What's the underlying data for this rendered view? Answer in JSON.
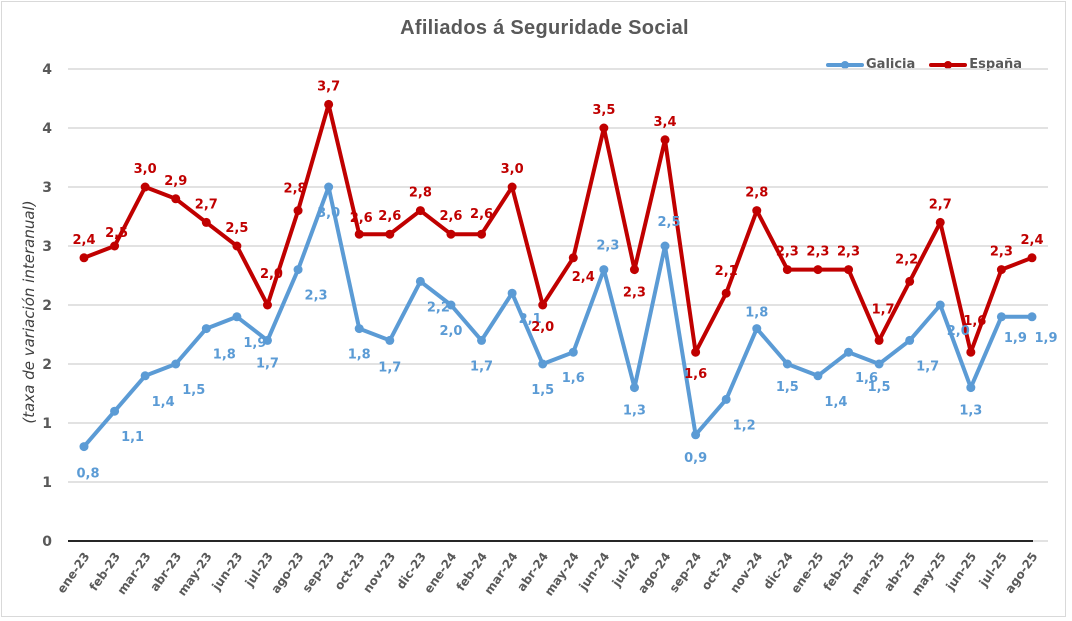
{
  "chart_data": {
    "type": "line",
    "title": "Afiliados  á Seguridade Social",
    "xlabel": "",
    "ylabel": "(taxa de variación interanual)",
    "ylim": [
      0,
      4
    ],
    "yticks": [
      0,
      0.5,
      1,
      1.5,
      2,
      2.5,
      3,
      3.5,
      4
    ],
    "ytick_labels": [
      "0",
      "1",
      "1",
      "2",
      "2",
      "3",
      "3",
      "4",
      "4"
    ],
    "grid": true,
    "legend_position": "top-right",
    "categories": [
      "ene-23",
      "feb-23",
      "mar-23",
      "abr-23",
      "may-23",
      "jun-23",
      "jul-23",
      "ago-23",
      "sep-23",
      "oct-23",
      "nov-23",
      "dic-23",
      "ene-24",
      "feb-24",
      "mar-24",
      "abr-24",
      "may-24",
      "jun-24",
      "jul-24",
      "ago-24",
      "sep-24",
      "oct-24",
      "nov-24",
      "dic-24",
      "ene-25",
      "feb-25",
      "mar-25",
      "abr-25",
      "may-25",
      "jun-25",
      "jul-25",
      "ago-25"
    ],
    "series": [
      {
        "name": "Galicia",
        "color": "#5b9bd5",
        "values": [
          0.8,
          1.1,
          1.4,
          1.5,
          1.8,
          1.9,
          1.7,
          2.3,
          3.0,
          1.8,
          1.7,
          2.2,
          2.0,
          1.7,
          2.1,
          1.5,
          1.6,
          2.3,
          1.3,
          2.5,
          0.9,
          1.2,
          1.8,
          1.5,
          1.4,
          1.6,
          1.5,
          1.7,
          2.0,
          1.3,
          1.9,
          1.9
        ],
        "labels": [
          "0,8",
          "1,1",
          "1,4",
          "1,5",
          "1,8",
          "1,9",
          "1,7",
          "2,3",
          "3,0",
          "1,8",
          "1,7",
          "2,2",
          "2,0",
          "1,7",
          "2,1",
          "1,5",
          "1,6",
          "2,3",
          "1,3",
          "2,5",
          "0,9",
          "1,2",
          "1,8",
          "1,5",
          "1,4",
          "1,6",
          "1,5",
          "1,7",
          "2,0",
          "1,3",
          "1,9",
          "1,9"
        ]
      },
      {
        "name": "España",
        "color": "#c00000",
        "values": [
          2.4,
          2.5,
          3.0,
          2.9,
          2.7,
          2.5,
          2.0,
          2.8,
          3.7,
          2.6,
          2.6,
          2.8,
          2.6,
          2.6,
          3.0,
          2.0,
          2.4,
          3.5,
          2.3,
          3.4,
          1.6,
          2.1,
          2.8,
          2.3,
          2.3,
          2.3,
          1.7,
          2.2,
          2.7,
          1.6,
          2.3,
          2.4
        ],
        "labels": [
          "2,4",
          "2,5",
          "3,0",
          "2,9",
          "2,7",
          "2,5",
          "2,0",
          "2,8",
          "3,7",
          "2,6",
          "2,6",
          "2,8",
          "2,6",
          "2,6",
          "3,0",
          "2,0",
          "2,4",
          "3,5",
          "2,3",
          "3,4",
          "1,6",
          "2,1",
          "2,8",
          "2,3",
          "2,3",
          "2,3",
          "1,7",
          "2,2",
          "2,7",
          "1,6",
          "2,3",
          "2,4"
        ]
      }
    ]
  }
}
